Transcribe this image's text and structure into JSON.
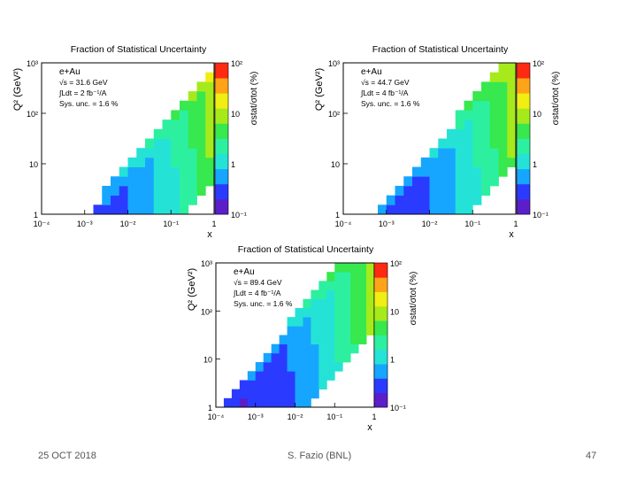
{
  "chart_data": [
    {
      "type": "heatmap",
      "title": "Fraction of Statistical Uncertainty",
      "xlabel": "x",
      "ylabel": "Q² (GeV²)",
      "colorbar_label": "σstat/σtot (%)",
      "xscale": "log",
      "yscale": "log",
      "xlim": [
        0.0001,
        1
      ],
      "ylim": [
        1,
        1000
      ],
      "zlim": [
        0.1,
        100
      ],
      "x_ticks": [
        "10⁻⁴",
        "10⁻³",
        "10⁻²",
        "10⁻¹",
        "1"
      ],
      "y_ticks": [
        "1",
        "10",
        "10²",
        "10³"
      ],
      "z_ticks": [
        "10⁻¹",
        "1",
        "10",
        "10²"
      ],
      "legend": [
        "e+Au",
        "√s = 31.6 GeV",
        "∫Ldt =  2 fb⁻¹/A",
        "Sys. unc. = 1.6 %"
      ],
      "sqrt_s_gev": 31.6,
      "binning": {
        "log10_x_range": [
          -4,
          0
        ],
        "log10_q2_range": [
          0,
          3
        ],
        "nx": 20,
        "ny": 16
      },
      "note": "Cell values z are estimated from the colour scale and are rounded to the precision the colours allow."
    },
    {
      "type": "heatmap",
      "title": "Fraction of Statistical Uncertainty",
      "xlabel": "x",
      "ylabel": "Q² (GeV²)",
      "colorbar_label": "σstat/σtot (%)",
      "xscale": "log",
      "yscale": "log",
      "xlim": [
        0.0001,
        1
      ],
      "ylim": [
        1,
        1000
      ],
      "zlim": [
        0.1,
        100
      ],
      "x_ticks": [
        "10⁻⁴",
        "10⁻³",
        "10⁻²",
        "10⁻¹",
        "1"
      ],
      "y_ticks": [
        "1",
        "10",
        "10²",
        "10³"
      ],
      "z_ticks": [
        "10⁻¹",
        "1",
        "10",
        "10²"
      ],
      "legend": [
        "e+Au",
        "√s = 44.7 GeV",
        "∫Ldt =  4 fb⁻¹/A",
        "Sys. unc. = 1.6 %"
      ],
      "sqrt_s_gev": 44.7,
      "binning": {
        "log10_x_range": [
          -4,
          0
        ],
        "log10_q2_range": [
          0,
          3
        ],
        "nx": 20,
        "ny": 16
      },
      "note": "Cell values z are estimated from the colour scale and are rounded to the precision the colours allow."
    },
    {
      "type": "heatmap",
      "title": "Fraction of Statistical Uncertainty",
      "xlabel": "x",
      "ylabel": "Q² (GeV²)",
      "colorbar_label": "σstat/σtot (%)",
      "xscale": "log",
      "yscale": "log",
      "xlim": [
        0.0001,
        1
      ],
      "ylim": [
        1,
        1000
      ],
      "zlim": [
        0.1,
        100
      ],
      "x_ticks": [
        "10⁻⁴",
        "10⁻³",
        "10⁻²",
        "10⁻¹",
        "1"
      ],
      "y_ticks": [
        "1",
        "10",
        "10²",
        "10³"
      ],
      "z_ticks": [
        "10⁻¹",
        "1",
        "10",
        "10²"
      ],
      "legend": [
        "e+Au",
        "√s = 89.4 GeV",
        "∫Ldt =  4 fb⁻¹/A",
        "Sys. unc. = 1.6 %"
      ],
      "sqrt_s_gev": 89.4,
      "binning": {
        "log10_x_range": [
          -4,
          0
        ],
        "log10_q2_range": [
          0,
          3
        ],
        "nx": 20,
        "ny": 16
      },
      "note": "Cell values z are estimated from the colour scale and are rounded to the precision the colours allow."
    }
  ],
  "footer": {
    "date": "25 OCT 2018",
    "author": "S. Fazio (BNL)",
    "page": "47"
  },
  "colors": {
    "palette": [
      "#5b1fc9",
      "#2a3bff",
      "#16a6ff",
      "#24e3d6",
      "#2cf0a0",
      "#37e84e",
      "#a6ea1c",
      "#f0ee12",
      "#ffa418",
      "#ff2a12"
    ],
    "frame": "#000000",
    "footer_text": "#555555"
  }
}
